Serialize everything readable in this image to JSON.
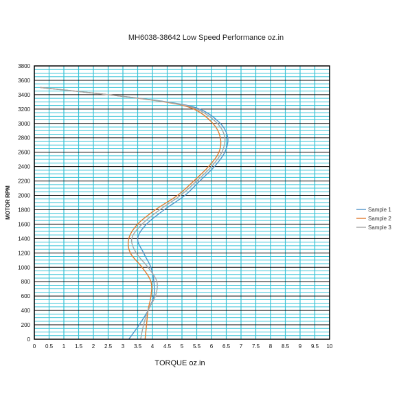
{
  "chart_data": {
    "type": "line",
    "title": "MH6038-38642     Low Speed Performance oz.in",
    "xlabel": "TORQUE  oz.in",
    "ylabel": "MOTOR RPM",
    "xlim": [
      0,
      10
    ],
    "ylim": [
      0,
      3800
    ],
    "x_ticks": [
      "0",
      "0.5",
      "1",
      "1.5",
      "2",
      "2.5",
      "3",
      "3.5",
      "4",
      "4.5",
      "5",
      "5.5",
      "6",
      "6.5",
      "7",
      "7.5",
      "8",
      "8.5",
      "9",
      "9.5",
      "10"
    ],
    "y_ticks": [
      "0",
      "200",
      "400",
      "600",
      "800",
      "1000",
      "1200",
      "1400",
      "1600",
      "1800",
      "2000",
      "2200",
      "2400",
      "2600",
      "2800",
      "3000",
      "3200",
      "3400",
      "3600",
      "3800"
    ],
    "grid": true,
    "legend_position": "right",
    "colors": {
      "major_grid": "#000000",
      "minor_grid": "#36c2d6",
      "vertical_grid": "#36c2d6"
    },
    "series": [
      {
        "name": "Sample 1",
        "color": "#4f95c9",
        "points": [
          [
            3.2,
            0
          ],
          [
            3.55,
            200
          ],
          [
            3.85,
            400
          ],
          [
            4.05,
            600
          ],
          [
            4.05,
            800
          ],
          [
            3.95,
            1000
          ],
          [
            3.7,
            1200
          ],
          [
            3.5,
            1400
          ],
          [
            3.8,
            1600
          ],
          [
            4.4,
            1800
          ],
          [
            5.1,
            2000
          ],
          [
            5.6,
            2200
          ],
          [
            6.1,
            2400
          ],
          [
            6.45,
            2600
          ],
          [
            6.55,
            2800
          ],
          [
            6.3,
            3000
          ],
          [
            5.6,
            3200
          ],
          [
            4.5,
            3300
          ],
          [
            2.5,
            3400
          ],
          [
            0.2,
            3500
          ]
        ]
      },
      {
        "name": "Sample 2",
        "color": "#e07b2f",
        "points": [
          [
            3.75,
            0
          ],
          [
            3.8,
            200
          ],
          [
            3.85,
            400
          ],
          [
            3.95,
            600
          ],
          [
            3.95,
            800
          ],
          [
            3.65,
            1000
          ],
          [
            3.25,
            1200
          ],
          [
            3.2,
            1400
          ],
          [
            3.5,
            1600
          ],
          [
            4.1,
            1800
          ],
          [
            4.85,
            2000
          ],
          [
            5.4,
            2200
          ],
          [
            5.9,
            2400
          ],
          [
            6.25,
            2600
          ],
          [
            6.3,
            2800
          ],
          [
            6.05,
            3000
          ],
          [
            5.4,
            3200
          ],
          [
            4.4,
            3300
          ],
          [
            2.5,
            3400
          ],
          [
            0.2,
            3500
          ]
        ]
      },
      {
        "name": "Sample 3",
        "color": "#a6a6a6",
        "points": [
          [
            3.6,
            0
          ],
          [
            3.7,
            200
          ],
          [
            3.85,
            400
          ],
          [
            4.1,
            600
          ],
          [
            4.15,
            800
          ],
          [
            3.85,
            1000
          ],
          [
            3.45,
            1200
          ],
          [
            3.3,
            1400
          ],
          [
            3.65,
            1600
          ],
          [
            4.25,
            1800
          ],
          [
            4.95,
            2000
          ],
          [
            5.5,
            2200
          ],
          [
            6.0,
            2400
          ],
          [
            6.35,
            2600
          ],
          [
            6.45,
            2800
          ],
          [
            6.2,
            3000
          ],
          [
            5.5,
            3200
          ],
          [
            4.45,
            3300
          ],
          [
            2.5,
            3400
          ],
          [
            0.2,
            3500
          ]
        ]
      }
    ]
  }
}
